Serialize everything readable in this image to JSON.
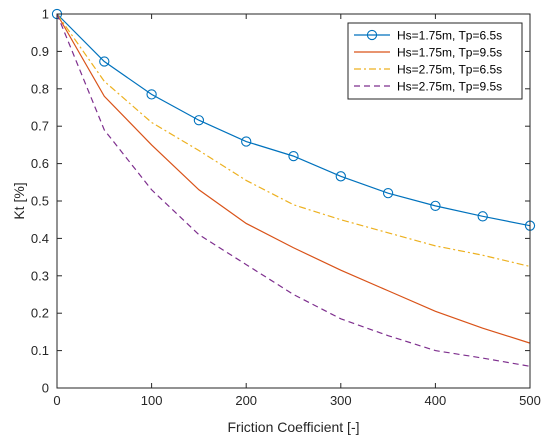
{
  "chart_data": {
    "type": "line",
    "title": "",
    "xlabel": "Friction Coefficient [-]",
    "ylabel": "Kt [%]",
    "xlim": [
      0,
      500
    ],
    "ylim": [
      0,
      1
    ],
    "x_ticks": [
      "0",
      "100",
      "200",
      "300",
      "400",
      "500"
    ],
    "y_ticks": [
      "0",
      "0.1",
      "0.2",
      "0.3",
      "0.4",
      "0.5",
      "0.6",
      "0.7",
      "0.8",
      "0.9",
      "1"
    ],
    "grid": false,
    "legend_position": "top-right",
    "x": [
      0,
      50,
      100,
      150,
      200,
      250,
      300,
      350,
      400,
      450,
      500
    ],
    "series": [
      {
        "name": "Hs=1.75m, Tp=6.5s",
        "color": "#0072BD",
        "line_style": "solid",
        "marker": "circle",
        "values": [
          1.0,
          0.873,
          0.785,
          0.716,
          0.659,
          0.62,
          0.566,
          0.521,
          0.487,
          0.459,
          0.434
        ]
      },
      {
        "name": "Hs=1.75m, Tp=9.5s",
        "color": "#D95319",
        "line_style": "solid",
        "marker": "none",
        "values": [
          1.0,
          0.78,
          0.65,
          0.53,
          0.44,
          0.375,
          0.315,
          0.26,
          0.205,
          0.16,
          0.12
        ]
      },
      {
        "name": "Hs=2.75m, Tp=6.5s",
        "color": "#EDB120",
        "line_style": "dashdot",
        "marker": "none",
        "values": [
          1.0,
          0.82,
          0.71,
          0.635,
          0.555,
          0.49,
          0.45,
          0.415,
          0.38,
          0.355,
          0.325
        ]
      },
      {
        "name": "Hs=2.75m, Tp=9.5s",
        "color": "#7E2F8E",
        "line_style": "dashed",
        "marker": "none",
        "values": [
          1.0,
          0.69,
          0.53,
          0.41,
          0.33,
          0.25,
          0.185,
          0.14,
          0.1,
          0.08,
          0.058
        ]
      }
    ]
  }
}
